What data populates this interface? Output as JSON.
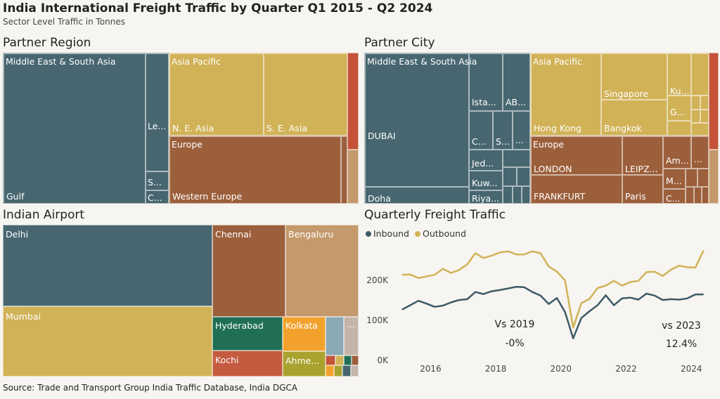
{
  "title": "India International Freight Traffic by Quarter Q1 2015 - Q2 2024",
  "subtitle": "Sector Level Traffic in Tonnes",
  "source": "Source: Trade and Transport Group India Traffic Database, India DGCA",
  "panels": {
    "region": "Partner Region",
    "city": "Partner City",
    "airport": "Indian Airport",
    "quarterly": "Quarterly Freight Traffic"
  },
  "colors": {
    "mesa": "#476670",
    "asia_pacific": "#d1b257",
    "europe": "#9c5f3b",
    "other_red": "#c45338",
    "other_tan": "#c49a6c",
    "hyderabad": "#1f6e55",
    "kolkata": "#f2a22c",
    "kochi": "#c45a3f",
    "ahmedabad": "#a9a22e",
    "misc_blue": "#8aa9b5",
    "inbound": "#3d5a66",
    "outbound": "#d1b257"
  },
  "region_labels": {
    "mesa": "Middle East & South Asia",
    "gulf": "Gulf",
    "le": "Le...",
    "s": "S...",
    "c": "C...",
    "asia_pacific": "Asia Pacific",
    "ne_asia": "N. E. Asia",
    "se_asia": "S. E. Asia",
    "europe": "Europe",
    "western_europe": "Western Europe"
  },
  "city_labels": {
    "mesa": "Middle East & South Asia",
    "dubai": "DUBAI",
    "doha": "Doha",
    "ista": "Ista...",
    "ab": "AB...",
    "c1": "C...",
    "s1": "S...",
    "dots1": "...",
    "jed": "Jed...",
    "kuw": "Kuw...",
    "riya": "Riya...",
    "asia_pacific": "Asia Pacific",
    "hong_kong": "Hong Kong",
    "singapore": "Singapore",
    "bangkok": "Bangkok",
    "ku": "Ku...",
    "g": "G...",
    "europe": "Europe",
    "london": "LONDON",
    "frankfurt": "FRANKFURT",
    "leipz": "LEIPZ...",
    "paris": "Paris",
    "am": "Am...",
    "dots2": "...",
    "m": "M...",
    "c2": "C..."
  },
  "airport_labels": {
    "delhi": "Delhi",
    "mumbai": "Mumbai",
    "chennai": "Chennai",
    "bengaluru": "Bengaluru",
    "hyderabad": "Hyderabad",
    "kochi": "Kochi",
    "kolkata": "Kolkata",
    "ahmedabad": "Ahme...",
    "dots": "..."
  },
  "chart_data": {
    "type": "line",
    "title": "Quarterly Freight Traffic",
    "xlabel": "",
    "ylabel": "",
    "x_ticks": [
      "2016",
      "2018",
      "2020",
      "2022",
      "2024"
    ],
    "y_ticks": [
      "0K",
      "100K",
      "200K"
    ],
    "ylim": [
      0,
      290000
    ],
    "xlim": [
      2015.0,
      2024.75
    ],
    "grid": false,
    "legend_position": "top-left",
    "x": [
      2015.125,
      2015.375,
      2015.625,
      2015.875,
      2016.125,
      2016.375,
      2016.625,
      2016.875,
      2017.125,
      2017.375,
      2017.625,
      2017.875,
      2018.125,
      2018.375,
      2018.625,
      2018.875,
      2019.125,
      2019.375,
      2019.625,
      2019.875,
      2020.125,
      2020.375,
      2020.625,
      2020.875,
      2021.125,
      2021.375,
      2021.625,
      2021.875,
      2022.125,
      2022.375,
      2022.625,
      2022.875,
      2023.125,
      2023.375,
      2023.625,
      2023.875,
      2024.125,
      2024.375
    ],
    "series": [
      {
        "name": "Inbound",
        "values": [
          127000,
          138000,
          149000,
          142000,
          134000,
          137000,
          145000,
          151000,
          153000,
          171000,
          166000,
          173000,
          176000,
          180000,
          184000,
          183000,
          171000,
          162000,
          141000,
          156000,
          121000,
          55000,
          106000,
          123000,
          138000,
          163000,
          138000,
          155000,
          157000,
          152000,
          167000,
          162000,
          151000,
          153000,
          152000,
          155000,
          165000,
          165000
        ]
      },
      {
        "name": "Outbound",
        "values": [
          214000,
          215000,
          206000,
          210000,
          214000,
          229000,
          219000,
          226000,
          240000,
          268000,
          256000,
          262000,
          270000,
          273000,
          265000,
          265000,
          273000,
          268000,
          235000,
          222000,
          200000,
          82000,
          143000,
          154000,
          181000,
          187000,
          199000,
          187000,
          196000,
          199000,
          221000,
          222000,
          211000,
          227000,
          237000,
          233000,
          232000,
          275000
        ]
      }
    ],
    "annotations": [
      {
        "label": "Vs 2019",
        "value": "-0%"
      },
      {
        "label": "vs 2023",
        "value": "12.4%"
      }
    ]
  }
}
